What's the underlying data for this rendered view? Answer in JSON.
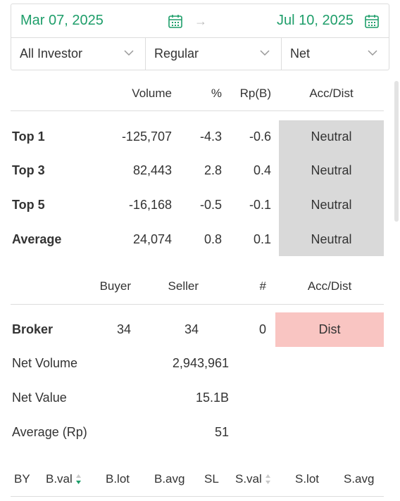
{
  "filters": {
    "start_date": "Mar 07, 2025",
    "end_date": "Jul 10, 2025",
    "investor": "All Investor",
    "type": "Regular",
    "mode": "Net"
  },
  "summary": {
    "headers": {
      "volume": "Volume",
      "pct": "%",
      "rp": "Rp(B)",
      "accdist": "Acc/Dist"
    },
    "rows": [
      {
        "label": "Top 1",
        "volume": "-125,707",
        "pct": "-4.3",
        "rp": "-0.6",
        "accdist": "Neutral"
      },
      {
        "label": "Top 3",
        "volume": "82,443",
        "pct": "2.8",
        "rp": "0.4",
        "accdist": "Neutral"
      },
      {
        "label": "Top 5",
        "volume": "-16,168",
        "pct": "-0.5",
        "rp": "-0.1",
        "accdist": "Neutral"
      },
      {
        "label": "Average",
        "volume": "24,074",
        "pct": "0.8",
        "rp": "0.1",
        "accdist": "Neutral"
      }
    ]
  },
  "broker": {
    "headers": {
      "buyer": "Buyer",
      "seller": "Seller",
      "count": "#",
      "accdist": "Acc/Dist"
    },
    "label": "Broker",
    "buyer": "34",
    "seller": "34",
    "count": "0",
    "accdist": "Dist",
    "net_volume_label": "Net Volume",
    "net_volume": "2,943,961",
    "net_value_label": "Net Value",
    "net_value": "15.1B",
    "average_label": "Average (Rp)",
    "average": "51"
  },
  "table": {
    "columns": [
      "BY",
      "B.val",
      "B.lot",
      "B.avg",
      "SL",
      "S.val",
      "S.lot",
      "S.avg"
    ]
  },
  "colors": {
    "accent": "#1e9e6a",
    "neutral_bg": "#d9d9d9",
    "dist_bg": "#f9c5c2"
  },
  "icons": {
    "calendar": "calendar-icon",
    "arrow": "arrow-right-icon",
    "chevron": "chevron-down-icon",
    "sort": "sort-icon"
  }
}
